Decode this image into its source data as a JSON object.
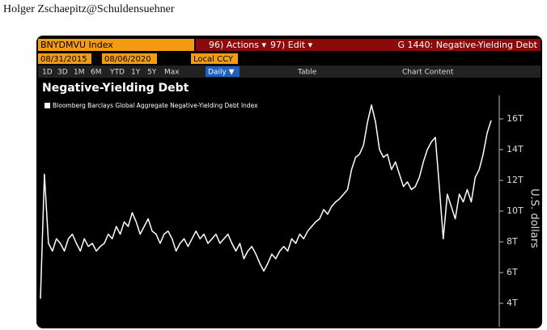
{
  "header": {
    "author": "Holger Zschaepitz@Schuldensuehner"
  },
  "toolbar": {
    "ticker": "BNYDMVU Index",
    "actions": "96) Actions ▾",
    "edit": "97) Edit ▾",
    "chart_id": "G 1440: Negative-Yielding Debt",
    "start_date": "08/31/2015",
    "end_date": "08/06/2020",
    "currency": "Local CCY",
    "periods": [
      "1D",
      "3D",
      "1M",
      "6M",
      "YTD",
      "1Y",
      "5Y",
      "Max"
    ],
    "frequency": "Daily ▼",
    "table": "Table",
    "chart_content": "Chart Content"
  },
  "chart_data": {
    "type": "line",
    "title": "Negative-Yielding Debt",
    "y_label": "U.S. dollars",
    "series": [
      {
        "name": "Bloomberg Barclays Global Aggregate Negative-Yielding Debt Index",
        "color": "#ffffff",
        "values": [
          4.3,
          12.4,
          7.9,
          7.4,
          8.2,
          7.9,
          7.4,
          8.2,
          8.5,
          7.9,
          7.4,
          8.2,
          7.7,
          7.9,
          7.4,
          7.7,
          7.9,
          8.5,
          8.2,
          9.0,
          8.5,
          9.3,
          9.0,
          9.9,
          9.3,
          8.5,
          9.0,
          9.5,
          8.7,
          8.5,
          7.9,
          8.5,
          8.7,
          8.2,
          7.4,
          7.9,
          8.2,
          7.7,
          8.2,
          8.7,
          8.2,
          8.5,
          7.9,
          8.2,
          8.5,
          7.9,
          8.2,
          8.5,
          7.9,
          7.4,
          7.9,
          6.9,
          7.4,
          7.7,
          7.2,
          6.6,
          6.1,
          6.6,
          7.2,
          6.9,
          7.4,
          7.7,
          7.4,
          8.2,
          7.9,
          8.5,
          8.2,
          8.7,
          9.0,
          9.3,
          9.5,
          10.1,
          9.8,
          10.3,
          10.6,
          10.8,
          11.1,
          11.4,
          12.7,
          13.5,
          13.7,
          14.3,
          15.8,
          16.9,
          15.8,
          14.0,
          13.5,
          13.7,
          12.7,
          13.2,
          12.4,
          11.6,
          11.9,
          11.4,
          11.6,
          12.2,
          13.2,
          14.0,
          14.5,
          14.8,
          11.6,
          8.2,
          11.1,
          10.3,
          9.5,
          11.1,
          10.6,
          11.4,
          10.6,
          12.2,
          12.7,
          13.7,
          15.1,
          15.9
        ]
      }
    ],
    "ylim": [
      2.5,
      17.5
    ],
    "yticks": [
      {
        "value": 4,
        "label": "4T"
      },
      {
        "value": 6,
        "label": "6T"
      },
      {
        "value": 8,
        "label": "8T"
      },
      {
        "value": 10,
        "label": "10T"
      },
      {
        "value": 12,
        "label": "12T"
      },
      {
        "value": 14,
        "label": "14T"
      },
      {
        "value": 16,
        "label": "16T"
      }
    ],
    "grid": false
  }
}
